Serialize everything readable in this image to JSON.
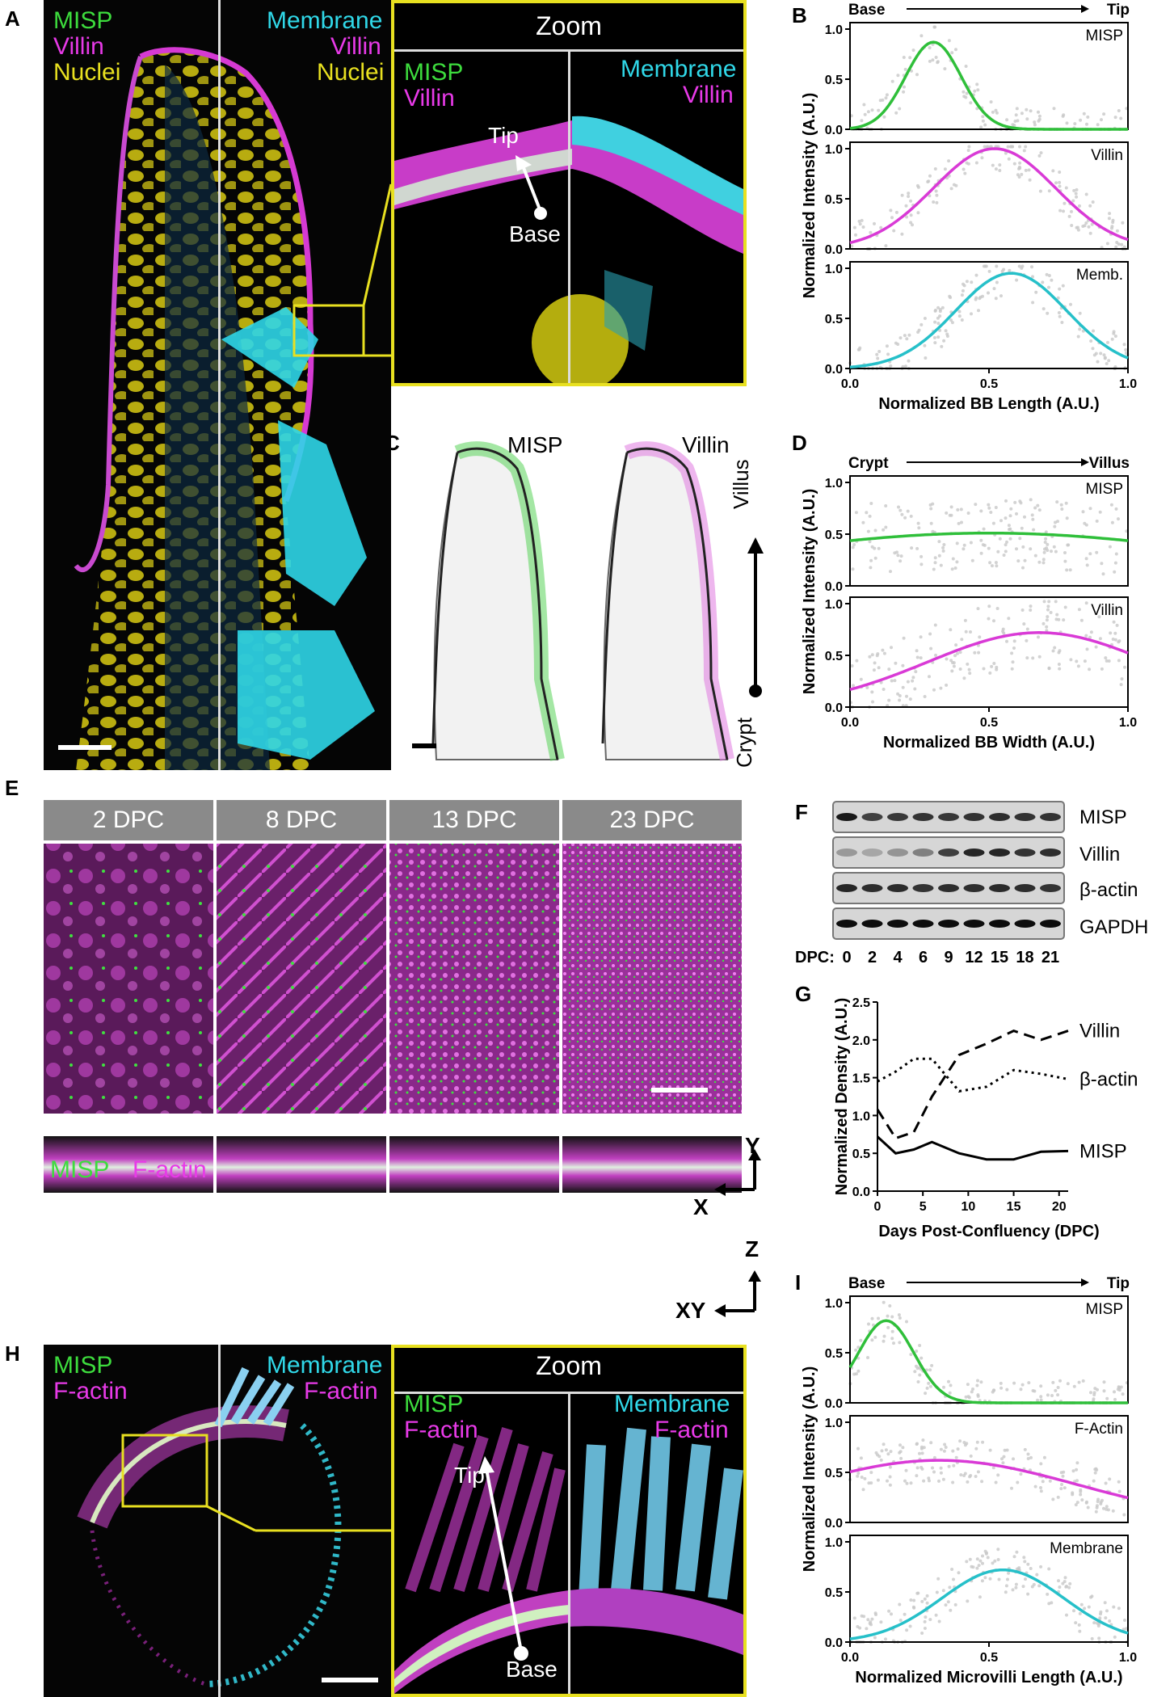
{
  "panels": {
    "A": "A",
    "B": "B",
    "C": "C",
    "D": "D",
    "E": "E",
    "F": "F",
    "G": "G",
    "H": "H",
    "I": "I"
  },
  "panelA": {
    "left_labels": [
      "MISP",
      "Villin",
      "Nuclei"
    ],
    "right_labels": [
      "Membrane",
      "Villin",
      "Nuclei"
    ],
    "zoom_title": "Zoom",
    "zoom_left": [
      "MISP",
      "Villin"
    ],
    "zoom_right": [
      "Membrane",
      "Villin"
    ],
    "tip": "Tip",
    "base": "Base"
  },
  "panelC": {
    "left": "MISP",
    "right": "Villin",
    "villus": "Villus",
    "crypt": "Crypt"
  },
  "panelE": {
    "days": [
      "2 DPC",
      "8 DPC",
      "13 DPC",
      "23 DPC"
    ],
    "legend_misp": "MISP",
    "legend_factin": "F-actin",
    "axis_y": "Y",
    "axis_x": "X",
    "axis_z": "Z",
    "axis_xy": "XY"
  },
  "panelF": {
    "rows": [
      "MISP",
      "Villin",
      "β-actin",
      "GAPDH"
    ],
    "dpc_label": "DPC:",
    "lanes": [
      "0",
      "2",
      "4",
      "6",
      "9",
      "12",
      "15",
      "18",
      "21"
    ]
  },
  "panelH": {
    "left_labels": [
      "MISP",
      "F-actin"
    ],
    "right_labels": [
      "Membrane",
      "F-actin"
    ],
    "zoom_title": "Zoom",
    "zoom_left": [
      "MISP",
      "F-actin"
    ],
    "zoom_right": [
      "Membrane",
      "F-actin"
    ],
    "tip": "Tip",
    "base": "Base"
  },
  "colors": {
    "misp": "#2fbf3a",
    "villin": "#d93ad6",
    "membrane": "#26c0c9",
    "scatter": "#c8c8c8"
  },
  "chart_data": [
    {
      "type": "line",
      "id": "B",
      "header": "Base",
      "header_right": "Tip",
      "ylabel": "Normalized Intensity (A.U.)",
      "xlabel": "Normalized BB Length (A.U.)",
      "xlim": [
        0,
        1
      ],
      "xticks": [
        "0.0",
        "0.5",
        "1.0"
      ],
      "yticks": [
        "0.0",
        "0.5",
        "1.0"
      ],
      "series": [
        {
          "name": "MISP",
          "mu": 0.3,
          "sigma": 0.1,
          "peak": 0.87,
          "base": 0.0
        },
        {
          "name": "Villin",
          "mu": 0.52,
          "sigma": 0.22,
          "peak": 1.0,
          "base": 0.0
        },
        {
          "name": "Memb.",
          "mu": 0.58,
          "sigma": 0.2,
          "peak": 0.95,
          "base": 0.0
        }
      ]
    },
    {
      "type": "line",
      "id": "D",
      "header": "Crypt",
      "header_right": "Villus",
      "ylabel": "Normalized Intensity (A.U.)",
      "xlabel": "Normalized BB Width (A.U.)",
      "xlim": [
        0,
        1
      ],
      "xticks": [
        "0.0",
        "0.5",
        "1.0"
      ],
      "yticks": [
        "0.0",
        "0.5",
        "1.0"
      ],
      "series": [
        {
          "name": "MISP",
          "mu": 0.5,
          "sigma": 0.9,
          "peak": 0.51,
          "base": 0.0
        },
        {
          "name": "Villin",
          "mu": 0.68,
          "sigma": 0.4,
          "peak": 0.72,
          "base": 0.0
        }
      ]
    },
    {
      "type": "line",
      "id": "G",
      "ylabel": "Normalized Density (A.U.)",
      "xlabel": "Days Post-Confluency (DPC)",
      "xlim": [
        0,
        21
      ],
      "ylim": [
        0,
        2.5
      ],
      "xticks": [
        "0",
        "5",
        "10",
        "15",
        "20"
      ],
      "yticks": [
        "0.0",
        "0.5",
        "1.0",
        "1.5",
        "2.0",
        "2.5"
      ],
      "x": [
        0,
        2,
        4,
        6,
        9,
        12,
        15,
        18,
        21
      ],
      "series": [
        {
          "name": "Villin",
          "values": [
            1.08,
            0.7,
            0.78,
            1.25,
            1.8,
            1.95,
            2.12,
            2.0,
            2.12
          ]
        },
        {
          "name": "β-actin",
          "values": [
            1.45,
            1.58,
            1.75,
            1.75,
            1.32,
            1.38,
            1.6,
            1.55,
            1.48
          ]
        },
        {
          "name": "MISP",
          "values": [
            0.72,
            0.5,
            0.55,
            0.65,
            0.5,
            0.42,
            0.42,
            0.52,
            0.53
          ]
        }
      ]
    },
    {
      "type": "line",
      "id": "I",
      "header": "Base",
      "header_right": "Tip",
      "ylabel": "Normalized Intensity (A.U.)",
      "xlabel": "Normalized Microvilli Length (A.U.)",
      "xlim": [
        0,
        1
      ],
      "xticks": [
        "0.0",
        "0.5",
        "1.0"
      ],
      "yticks": [
        "0.0",
        "0.5",
        "1.0"
      ],
      "series": [
        {
          "name": "MISP",
          "mu": 0.13,
          "sigma": 0.1,
          "peak": 0.82,
          "base": 0.0
        },
        {
          "name": "F-Actin",
          "mu": 0.32,
          "sigma": 0.5,
          "peak": 0.62,
          "base": 0.0
        },
        {
          "name": "Membrane",
          "mu": 0.55,
          "sigma": 0.22,
          "peak": 0.72,
          "base": 0.0
        }
      ]
    }
  ]
}
